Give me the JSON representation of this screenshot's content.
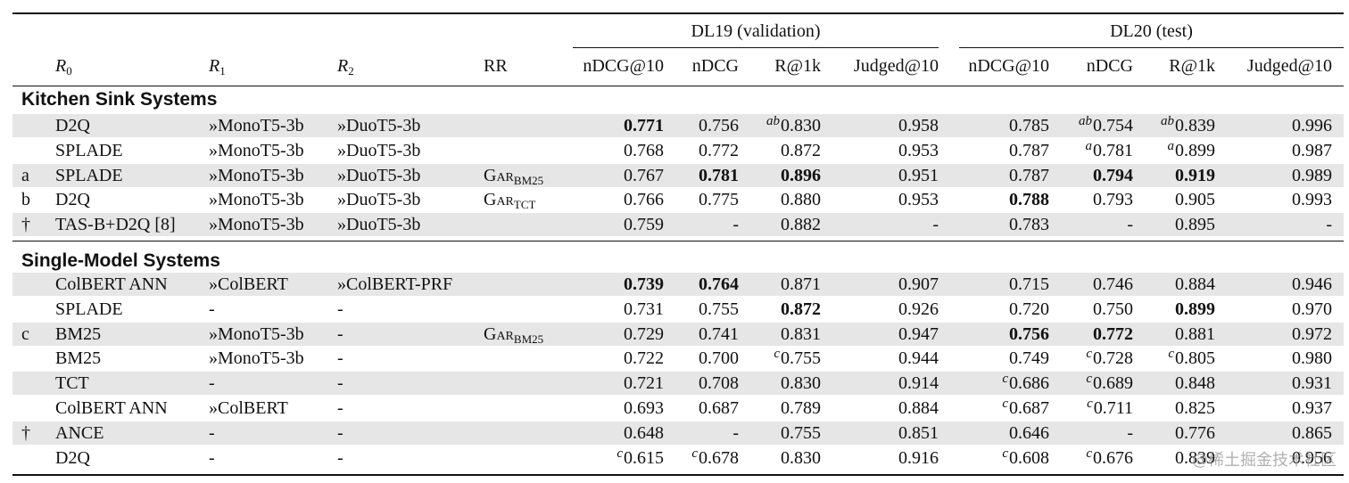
{
  "header": {
    "groups": [
      {
        "label": "DL19 (validation)"
      },
      {
        "label": "DL20 (test)"
      }
    ],
    "r0": "R",
    "r0_sub": "0",
    "r1": "R",
    "r1_sub": "1",
    "r2": "R",
    "r2_sub": "2",
    "rr": "RR",
    "cols": [
      "nDCG@10",
      "nDCG",
      "R@1k",
      "Judged@10",
      "nDCG@10",
      "nDCG",
      "R@1k",
      "Judged@10"
    ]
  },
  "sections": [
    {
      "title": "Kitchen Sink Systems",
      "rows": [
        {
          "mark": "",
          "r0": "D2Q",
          "r1": "»MonoT5-3b",
          "r2": "»DuoT5-3b",
          "rr": "",
          "rr_sub": "",
          "vals": [
            {
              "v": "0.771",
              "b": true
            },
            {
              "v": "0.756"
            },
            {
              "v": "0.830",
              "s": "ab"
            },
            {
              "v": "0.958"
            },
            {
              "v": "0.785"
            },
            {
              "v": "0.754",
              "s": "ab"
            },
            {
              "v": "0.839",
              "s": "ab"
            },
            {
              "v": "0.996"
            }
          ]
        },
        {
          "mark": "",
          "r0": "SPLADE",
          "r1": "»MonoT5-3b",
          "r2": "»DuoT5-3b",
          "rr": "",
          "rr_sub": "",
          "vals": [
            {
              "v": "0.768"
            },
            {
              "v": "0.772"
            },
            {
              "v": "0.872"
            },
            {
              "v": "0.953"
            },
            {
              "v": "0.787"
            },
            {
              "v": "0.781",
              "s": "a"
            },
            {
              "v": "0.899",
              "s": "a"
            },
            {
              "v": "0.987"
            }
          ]
        },
        {
          "mark": "a",
          "r0": "SPLADE",
          "r1": "»MonoT5-3b",
          "r2": "»DuoT5-3b",
          "rr": "Gar",
          "rr_sub": "BM25",
          "vals": [
            {
              "v": "0.767"
            },
            {
              "v": "0.781",
              "b": true
            },
            {
              "v": "0.896",
              "b": true
            },
            {
              "v": "0.951"
            },
            {
              "v": "0.787"
            },
            {
              "v": "0.794",
              "b": true
            },
            {
              "v": "0.919",
              "b": true
            },
            {
              "v": "0.989"
            }
          ]
        },
        {
          "mark": "b",
          "r0": "D2Q",
          "r1": "»MonoT5-3b",
          "r2": "»DuoT5-3b",
          "rr": "Gar",
          "rr_sub": "TCT",
          "vals": [
            {
              "v": "0.766"
            },
            {
              "v": "0.775"
            },
            {
              "v": "0.880"
            },
            {
              "v": "0.953"
            },
            {
              "v": "0.788",
              "b": true
            },
            {
              "v": "0.793"
            },
            {
              "v": "0.905"
            },
            {
              "v": "0.993"
            }
          ]
        },
        {
          "mark": "†",
          "r0": "TAS-B+D2Q [8]",
          "r1": "»MonoT5-3b",
          "r2": "»DuoT5-3b",
          "rr": "",
          "rr_sub": "",
          "vals": [
            {
              "v": "0.759"
            },
            {
              "v": "-"
            },
            {
              "v": "0.882"
            },
            {
              "v": "-"
            },
            {
              "v": "0.783"
            },
            {
              "v": "-"
            },
            {
              "v": "0.895"
            },
            {
              "v": "-"
            }
          ]
        }
      ]
    },
    {
      "title": "Single-Model Systems",
      "rows": [
        {
          "mark": "",
          "r0": "ColBERT ANN",
          "r1": "»ColBERT",
          "r2": "»ColBERT-PRF",
          "rr": "",
          "rr_sub": "",
          "vals": [
            {
              "v": "0.739",
              "b": true
            },
            {
              "v": "0.764",
              "b": true
            },
            {
              "v": "0.871"
            },
            {
              "v": "0.907"
            },
            {
              "v": "0.715"
            },
            {
              "v": "0.746"
            },
            {
              "v": "0.884"
            },
            {
              "v": "0.946"
            }
          ]
        },
        {
          "mark": "",
          "r0": "SPLADE",
          "r1": "-",
          "r2": "-",
          "rr": "",
          "rr_sub": "",
          "vals": [
            {
              "v": "0.731"
            },
            {
              "v": "0.755"
            },
            {
              "v": "0.872",
              "b": true
            },
            {
              "v": "0.926"
            },
            {
              "v": "0.720"
            },
            {
              "v": "0.750"
            },
            {
              "v": "0.899",
              "b": true
            },
            {
              "v": "0.970"
            }
          ]
        },
        {
          "mark": "c",
          "r0": "BM25",
          "r1": "»MonoT5-3b",
          "r2": "-",
          "rr": "Gar",
          "rr_sub": "BM25",
          "vals": [
            {
              "v": "0.729"
            },
            {
              "v": "0.741"
            },
            {
              "v": "0.831"
            },
            {
              "v": "0.947"
            },
            {
              "v": "0.756",
              "b": true
            },
            {
              "v": "0.772",
              "b": true
            },
            {
              "v": "0.881"
            },
            {
              "v": "0.972"
            }
          ]
        },
        {
          "mark": "",
          "r0": "BM25",
          "r1": "»MonoT5-3b",
          "r2": "-",
          "rr": "",
          "rr_sub": "",
          "vals": [
            {
              "v": "0.722"
            },
            {
              "v": "0.700"
            },
            {
              "v": "0.755",
              "s": "c"
            },
            {
              "v": "0.944"
            },
            {
              "v": "0.749"
            },
            {
              "v": "0.728",
              "s": "c"
            },
            {
              "v": "0.805",
              "s": "c"
            },
            {
              "v": "0.980"
            }
          ]
        },
        {
          "mark": "",
          "r0": "TCT",
          "r1": "-",
          "r2": "-",
          "rr": "",
          "rr_sub": "",
          "vals": [
            {
              "v": "0.721"
            },
            {
              "v": "0.708"
            },
            {
              "v": "0.830"
            },
            {
              "v": "0.914"
            },
            {
              "v": "0.686",
              "s": "c"
            },
            {
              "v": "0.689",
              "s": "c"
            },
            {
              "v": "0.848"
            },
            {
              "v": "0.931"
            }
          ]
        },
        {
          "mark": "",
          "r0": "ColBERT ANN",
          "r1": "»ColBERT",
          "r2": "-",
          "rr": "",
          "rr_sub": "",
          "vals": [
            {
              "v": "0.693"
            },
            {
              "v": "0.687"
            },
            {
              "v": "0.789"
            },
            {
              "v": "0.884"
            },
            {
              "v": "0.687",
              "s": "c"
            },
            {
              "v": "0.711",
              "s": "c"
            },
            {
              "v": "0.825"
            },
            {
              "v": "0.937"
            }
          ]
        },
        {
          "mark": "†",
          "r0": "ANCE",
          "r1": "-",
          "r2": "-",
          "rr": "",
          "rr_sub": "",
          "vals": [
            {
              "v": "0.648"
            },
            {
              "v": "-"
            },
            {
              "v": "0.755"
            },
            {
              "v": "0.851"
            },
            {
              "v": "0.646"
            },
            {
              "v": "-"
            },
            {
              "v": "0.776"
            },
            {
              "v": "0.865"
            }
          ]
        },
        {
          "mark": "",
          "r0": "D2Q",
          "r1": "-",
          "r2": "-",
          "rr": "",
          "rr_sub": "",
          "vals": [
            {
              "v": "0.615",
              "s": "c"
            },
            {
              "v": "0.678",
              "s": "c"
            },
            {
              "v": "0.830"
            },
            {
              "v": "0.916"
            },
            {
              "v": "0.608",
              "s": "c"
            },
            {
              "v": "0.676",
              "s": "c"
            },
            {
              "v": "0.839"
            },
            {
              "v": "0.956"
            }
          ]
        }
      ]
    }
  ],
  "watermark": "@稀土掘金技术社区"
}
